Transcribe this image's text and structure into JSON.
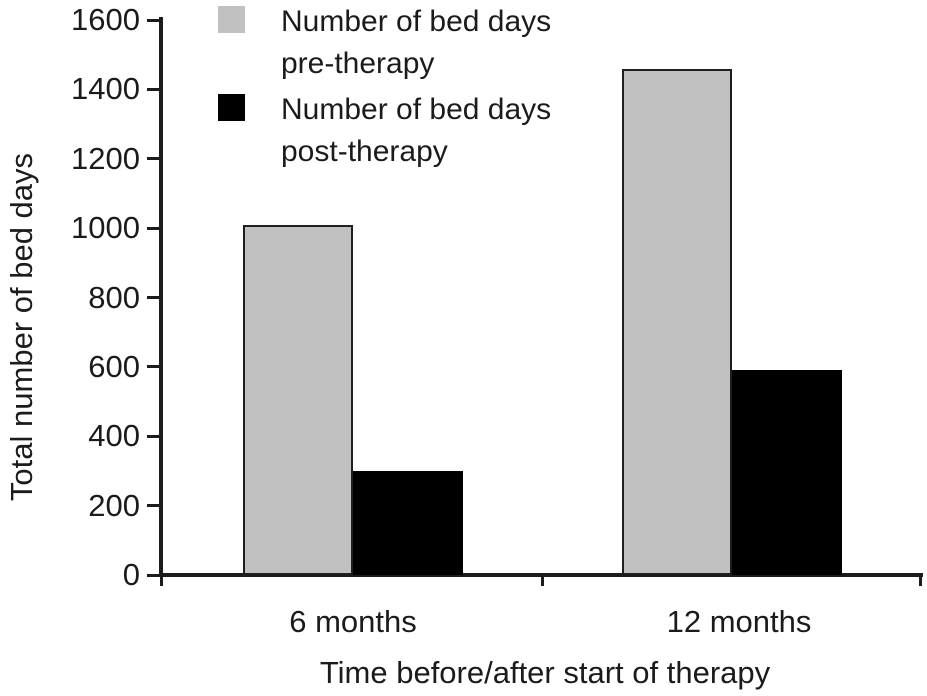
{
  "chart_data": {
    "type": "bar",
    "title": "",
    "categories": [
      "6 months",
      "12 months"
    ],
    "series": [
      {
        "name": "Number of bed days pre-therapy",
        "color": "#c1c1c1",
        "values": [
          1010,
          1460
        ]
      },
      {
        "name": "Number of bed days post-therapy",
        "color": "#000000",
        "values": [
          300,
          590
        ]
      }
    ],
    "xlabel": "Time before/after start of therapy",
    "ylabel": "Total number of bed days",
    "ylim": [
      0,
      1600
    ],
    "y_ticks": [
      0,
      200,
      400,
      600,
      800,
      1000,
      1200,
      1400,
      1600
    ],
    "grid": false,
    "legend_position": "top-left-inside"
  },
  "legend": {
    "items": [
      {
        "line1": "Number of bed days",
        "line2": "pre-therapy",
        "color": "#c1c1c1"
      },
      {
        "line1": "Number of bed days",
        "line2": "post-therapy",
        "color": "#000000"
      }
    ]
  },
  "colors": {
    "axis": "#1c1c1c",
    "text": "#1b1b1b",
    "background": "#ffffff"
  }
}
